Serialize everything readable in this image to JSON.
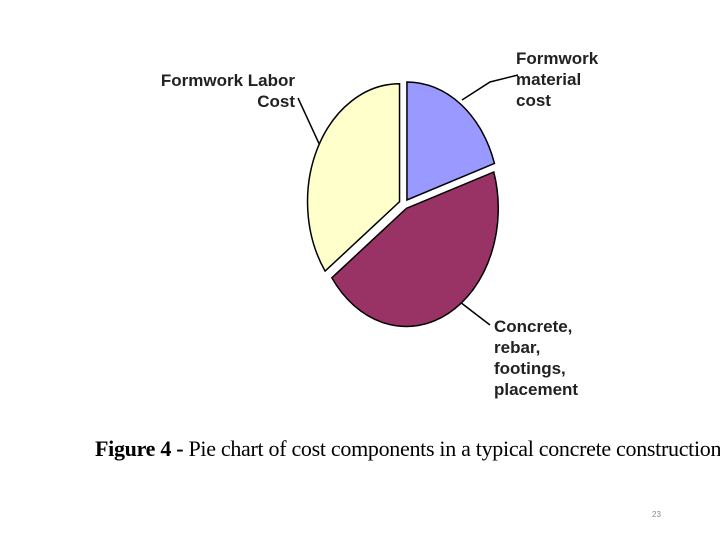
{
  "chart_data": {
    "type": "pie",
    "categories": [
      "Formwork material cost",
      "Concrete, rebar, footings, placement",
      "Formwork Labor Cost"
    ],
    "values": [
      20,
      45,
      35
    ],
    "colors": [
      "#9999ff",
      "#993366",
      "#ffffcc"
    ]
  },
  "caption": {
    "label": "Figure 4 -",
    "text": "Pie chart of cost components in a typical concrete construction"
  },
  "slide_number": "23"
}
